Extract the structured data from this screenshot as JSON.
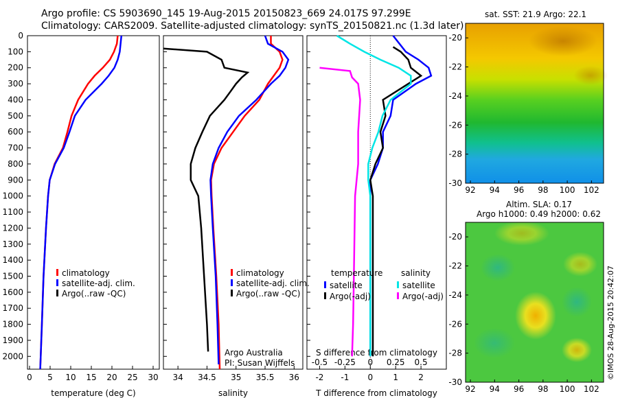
{
  "header": {
    "line1": "Argo profile: CS 5903690_145 19-Aug-2015 20150823_669 24.017S 97.299E",
    "line2": "Climatology: CARS2009. Satellite-adjusted climatology: synTS_20150821.nc (1.3d later)"
  },
  "maps": {
    "sst_title": "sat. SST: 21.9 Argo: 22.1",
    "sla_title1": "Altim. SLA: 0.17",
    "sla_title2": "Argo h1000: 0.49 h2000: 0.62",
    "timestamp": "©IMOS 28-Aug-2015 20:42:07",
    "lon_ticks": [
      "92",
      "94",
      "96",
      "98",
      "100",
      "102"
    ],
    "lat_ticks": [
      "-20",
      "-22",
      "-24",
      "-26",
      "-28",
      "-30"
    ]
  },
  "colors": {
    "climatology": "#ff0000",
    "satellite": "#0000ff",
    "argo": "#000000",
    "sat_salinity": "#00e5e5",
    "argo_salinity": "#ff00ff"
  },
  "chart_data": [
    {
      "type": "line",
      "xlabel": "temperature (deg C)",
      "ylabel": "",
      "xlim": [
        -0.5,
        31.5
      ],
      "ylim": [
        2080,
        0
      ],
      "x_ticks": [
        "0",
        "5",
        "10",
        "15",
        "20",
        "25",
        "30"
      ],
      "y_ticks": [
        "0",
        "100",
        "200",
        "300",
        "400",
        "500",
        "600",
        "700",
        "800",
        "900",
        "1000",
        "1100",
        "1200",
        "1300",
        "1400",
        "1500",
        "1600",
        "1700",
        "1800",
        "1900",
        "2000"
      ],
      "legend": [
        "climatology",
        "satellite-adj. clim.",
        "Argo(..raw -QC)"
      ],
      "series": [
        {
          "name": "climatology",
          "depth": [
            0,
            50,
            100,
            150,
            200,
            250,
            300,
            400,
            500,
            600,
            700,
            800,
            900,
            1000,
            1200,
            1500,
            1800,
            2080
          ],
          "values": [
            21.4,
            21.2,
            20.5,
            19.5,
            17.8,
            15.8,
            14.2,
            11.8,
            10.2,
            9.2,
            8.1,
            6.1,
            4.9,
            4.5,
            4.0,
            3.4,
            3.0,
            2.6
          ]
        },
        {
          "name": "satellite-adj. clim.",
          "depth": [
            0,
            50,
            100,
            150,
            200,
            250,
            300,
            400,
            500,
            600,
            700,
            800,
            900,
            1000,
            1200,
            1500,
            1800,
            2080
          ],
          "values": [
            22.3,
            22.1,
            21.9,
            21.4,
            20.6,
            19.2,
            17.5,
            13.6,
            11.0,
            9.7,
            8.3,
            6.2,
            4.9,
            4.5,
            4.0,
            3.4,
            3.0,
            2.6
          ]
        },
        {
          "name": "Argo(..raw -QC)",
          "depth": [],
          "values": []
        }
      ]
    },
    {
      "type": "line",
      "xlabel": "salinity",
      "xlim": [
        33.75,
        36.15
      ],
      "ylim": [
        2080,
        0
      ],
      "x_ticks": [
        "34",
        "34.5",
        "35",
        "35.5",
        "36"
      ],
      "legend": [
        "climatology",
        "satellite-adj. clim.",
        "Argo(..raw -QC)"
      ],
      "annotation1": "Argo Australia",
      "annotation2": "PI: Susan Wijffels",
      "series": [
        {
          "name": "climatology",
          "depth": [
            0,
            50,
            100,
            150,
            200,
            250,
            300,
            400,
            500,
            600,
            700,
            800,
            900,
            1000,
            1200,
            1500,
            1800,
            2080
          ],
          "values": [
            35.6,
            35.6,
            35.75,
            35.8,
            35.75,
            35.65,
            35.55,
            35.4,
            35.15,
            34.95,
            34.75,
            34.62,
            34.57,
            34.58,
            34.61,
            34.66,
            34.7,
            34.72
          ]
        },
        {
          "name": "satellite-adj. clim.",
          "depth": [
            0,
            50,
            100,
            150,
            200,
            250,
            300,
            400,
            500,
            600,
            700,
            800,
            900,
            1000,
            1200,
            1500,
            1800,
            2050
          ],
          "values": [
            35.5,
            35.55,
            35.8,
            35.9,
            35.85,
            35.75,
            35.6,
            35.35,
            35.05,
            34.85,
            34.7,
            34.6,
            34.56,
            34.57,
            34.6,
            34.65,
            34.68,
            34.7
          ]
        },
        {
          "name": "Argo(..raw -QC)",
          "depth": [
            80,
            100,
            150,
            200,
            230,
            260,
            280,
            300,
            350,
            400,
            500,
            600,
            700,
            800,
            900,
            1000,
            1200,
            1500,
            1800,
            1970
          ],
          "values": [
            33.75,
            34.5,
            34.75,
            34.8,
            35.2,
            35.1,
            35.05,
            35.0,
            34.9,
            34.8,
            34.55,
            34.42,
            34.3,
            34.22,
            34.22,
            34.35,
            34.4,
            34.45,
            34.5,
            34.52
          ]
        }
      ]
    },
    {
      "type": "line",
      "xlabel": "T difference from climatology",
      "top_label": "S difference from climatology",
      "xlim": [
        -2.5,
        3.0
      ],
      "ylim": [
        2080,
        0
      ],
      "x_ticks": [
        "-2",
        "-1",
        "0",
        "1",
        "2"
      ],
      "top_ticks": [
        "-0.5",
        "-0.25",
        "0",
        "0.25",
        "0.5"
      ],
      "legend_titles": [
        "temperature",
        "salinity"
      ],
      "legend": [
        "satellite",
        "Argo(-adj)",
        "satellite",
        "Argo(-adj)"
      ],
      "series": [
        {
          "name": "satellite",
          "depth": [
            0,
            100,
            150,
            200,
            250,
            300,
            400,
            500,
            600,
            700,
            800,
            900,
            1000,
            1500,
            2000
          ],
          "values": [
            0.9,
            1.4,
            1.9,
            2.3,
            2.4,
            1.8,
            0.9,
            0.8,
            0.5,
            0.5,
            0.3,
            0.0,
            0.0,
            0.0,
            0.0
          ]
        },
        {
          "name": "Argo(-adj)",
          "depth": [
            70,
            100,
            150,
            200,
            250,
            300,
            400,
            500,
            600,
            700,
            800,
            900,
            1000,
            1500,
            2000
          ],
          "values": [
            0.9,
            1.2,
            1.5,
            1.6,
            2.0,
            1.5,
            0.5,
            0.6,
            0.4,
            0.5,
            0.2,
            0.0,
            0.1,
            0.1,
            0.1
          ]
        },
        {
          "name": "satellite",
          "depth": [
            0,
            50,
            100,
            150,
            200,
            250,
            300,
            400,
            500,
            600,
            700,
            800,
            900,
            1000,
            1500,
            2000
          ],
          "values": [
            -0.33,
            -0.2,
            -0.06,
            0.1,
            0.28,
            0.4,
            0.4,
            0.2,
            0.12,
            0.08,
            0.02,
            -0.02,
            -0.02,
            0.0,
            0.0,
            0.0
          ]
        },
        {
          "name": "Argo(-adj)",
          "depth": [
            200,
            220,
            260,
            300,
            400,
            600,
            800,
            1000,
            1400,
            1800,
            2000
          ],
          "values": [
            -0.5,
            -0.2,
            -0.18,
            -0.12,
            -0.1,
            -0.12,
            -0.12,
            -0.15,
            -0.16,
            -0.17,
            -0.18
          ]
        }
      ]
    }
  ]
}
